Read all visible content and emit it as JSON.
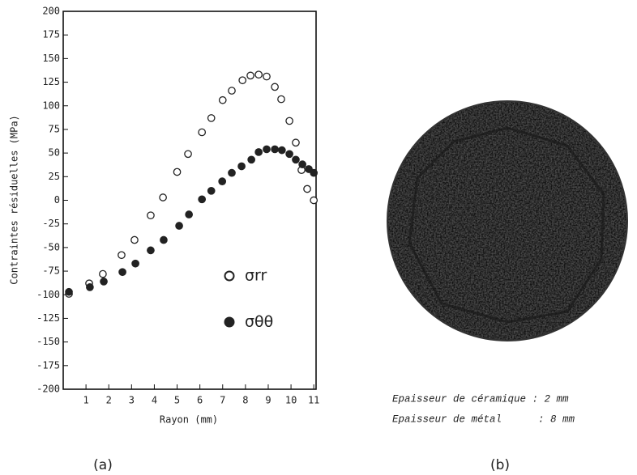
{
  "chart_data": {
    "type": "scatter",
    "x_label": "Rayon (mm)",
    "y_label": "Contraintes résiduelles (MPa)",
    "xlim": [
      0,
      11.1
    ],
    "xticks": [
      1,
      2,
      3,
      4,
      5,
      6,
      7,
      8,
      9,
      10,
      11
    ],
    "ylim": [
      -200,
      200
    ],
    "yticks": [
      -200,
      -175,
      -150,
      -125,
      -100,
      -75,
      -50,
      -25,
      0,
      25,
      50,
      75,
      100,
      125,
      150,
      175,
      200
    ],
    "legend": "lower-right",
    "series": [
      {
        "name": "σrr",
        "marker": "open",
        "color": "#222",
        "x": [
          0.25,
          1.14,
          1.74,
          2.56,
          3.13,
          3.84,
          4.38,
          5.0,
          5.48,
          6.09,
          6.5,
          7.0,
          7.4,
          7.87,
          8.22,
          8.58,
          8.93,
          9.29,
          9.57,
          9.93,
          10.21,
          10.46,
          10.71,
          11.0
        ],
        "values": [
          -99,
          -88,
          -78,
          -58,
          -42,
          -16,
          3,
          30,
          49,
          72,
          87,
          106,
          116,
          127,
          132,
          133,
          131,
          120,
          107,
          84,
          61,
          32,
          12,
          0
        ]
      },
      {
        "name": "σθθ",
        "marker": "filled",
        "color": "#222",
        "x": [
          0.25,
          1.17,
          1.78,
          2.6,
          3.17,
          3.84,
          4.41,
          5.09,
          5.52,
          6.09,
          6.5,
          6.98,
          7.4,
          7.83,
          8.26,
          8.58,
          8.93,
          9.29,
          9.6,
          9.93,
          10.21,
          10.5,
          10.78,
          11.0
        ],
        "values": [
          -97,
          -92,
          -86,
          -76,
          -67,
          -53,
          -42,
          -27,
          -15,
          1,
          10,
          20,
          29,
          36,
          43,
          51,
          54,
          54,
          53,
          49,
          43,
          38,
          33,
          29
        ]
      }
    ]
  },
  "image_caption": [
    "Epaisseur de céramique : 2 mm",
    "Epaisseur de métal      : 8 mm"
  ],
  "panel_labels": [
    "(a)",
    "(b)"
  ]
}
